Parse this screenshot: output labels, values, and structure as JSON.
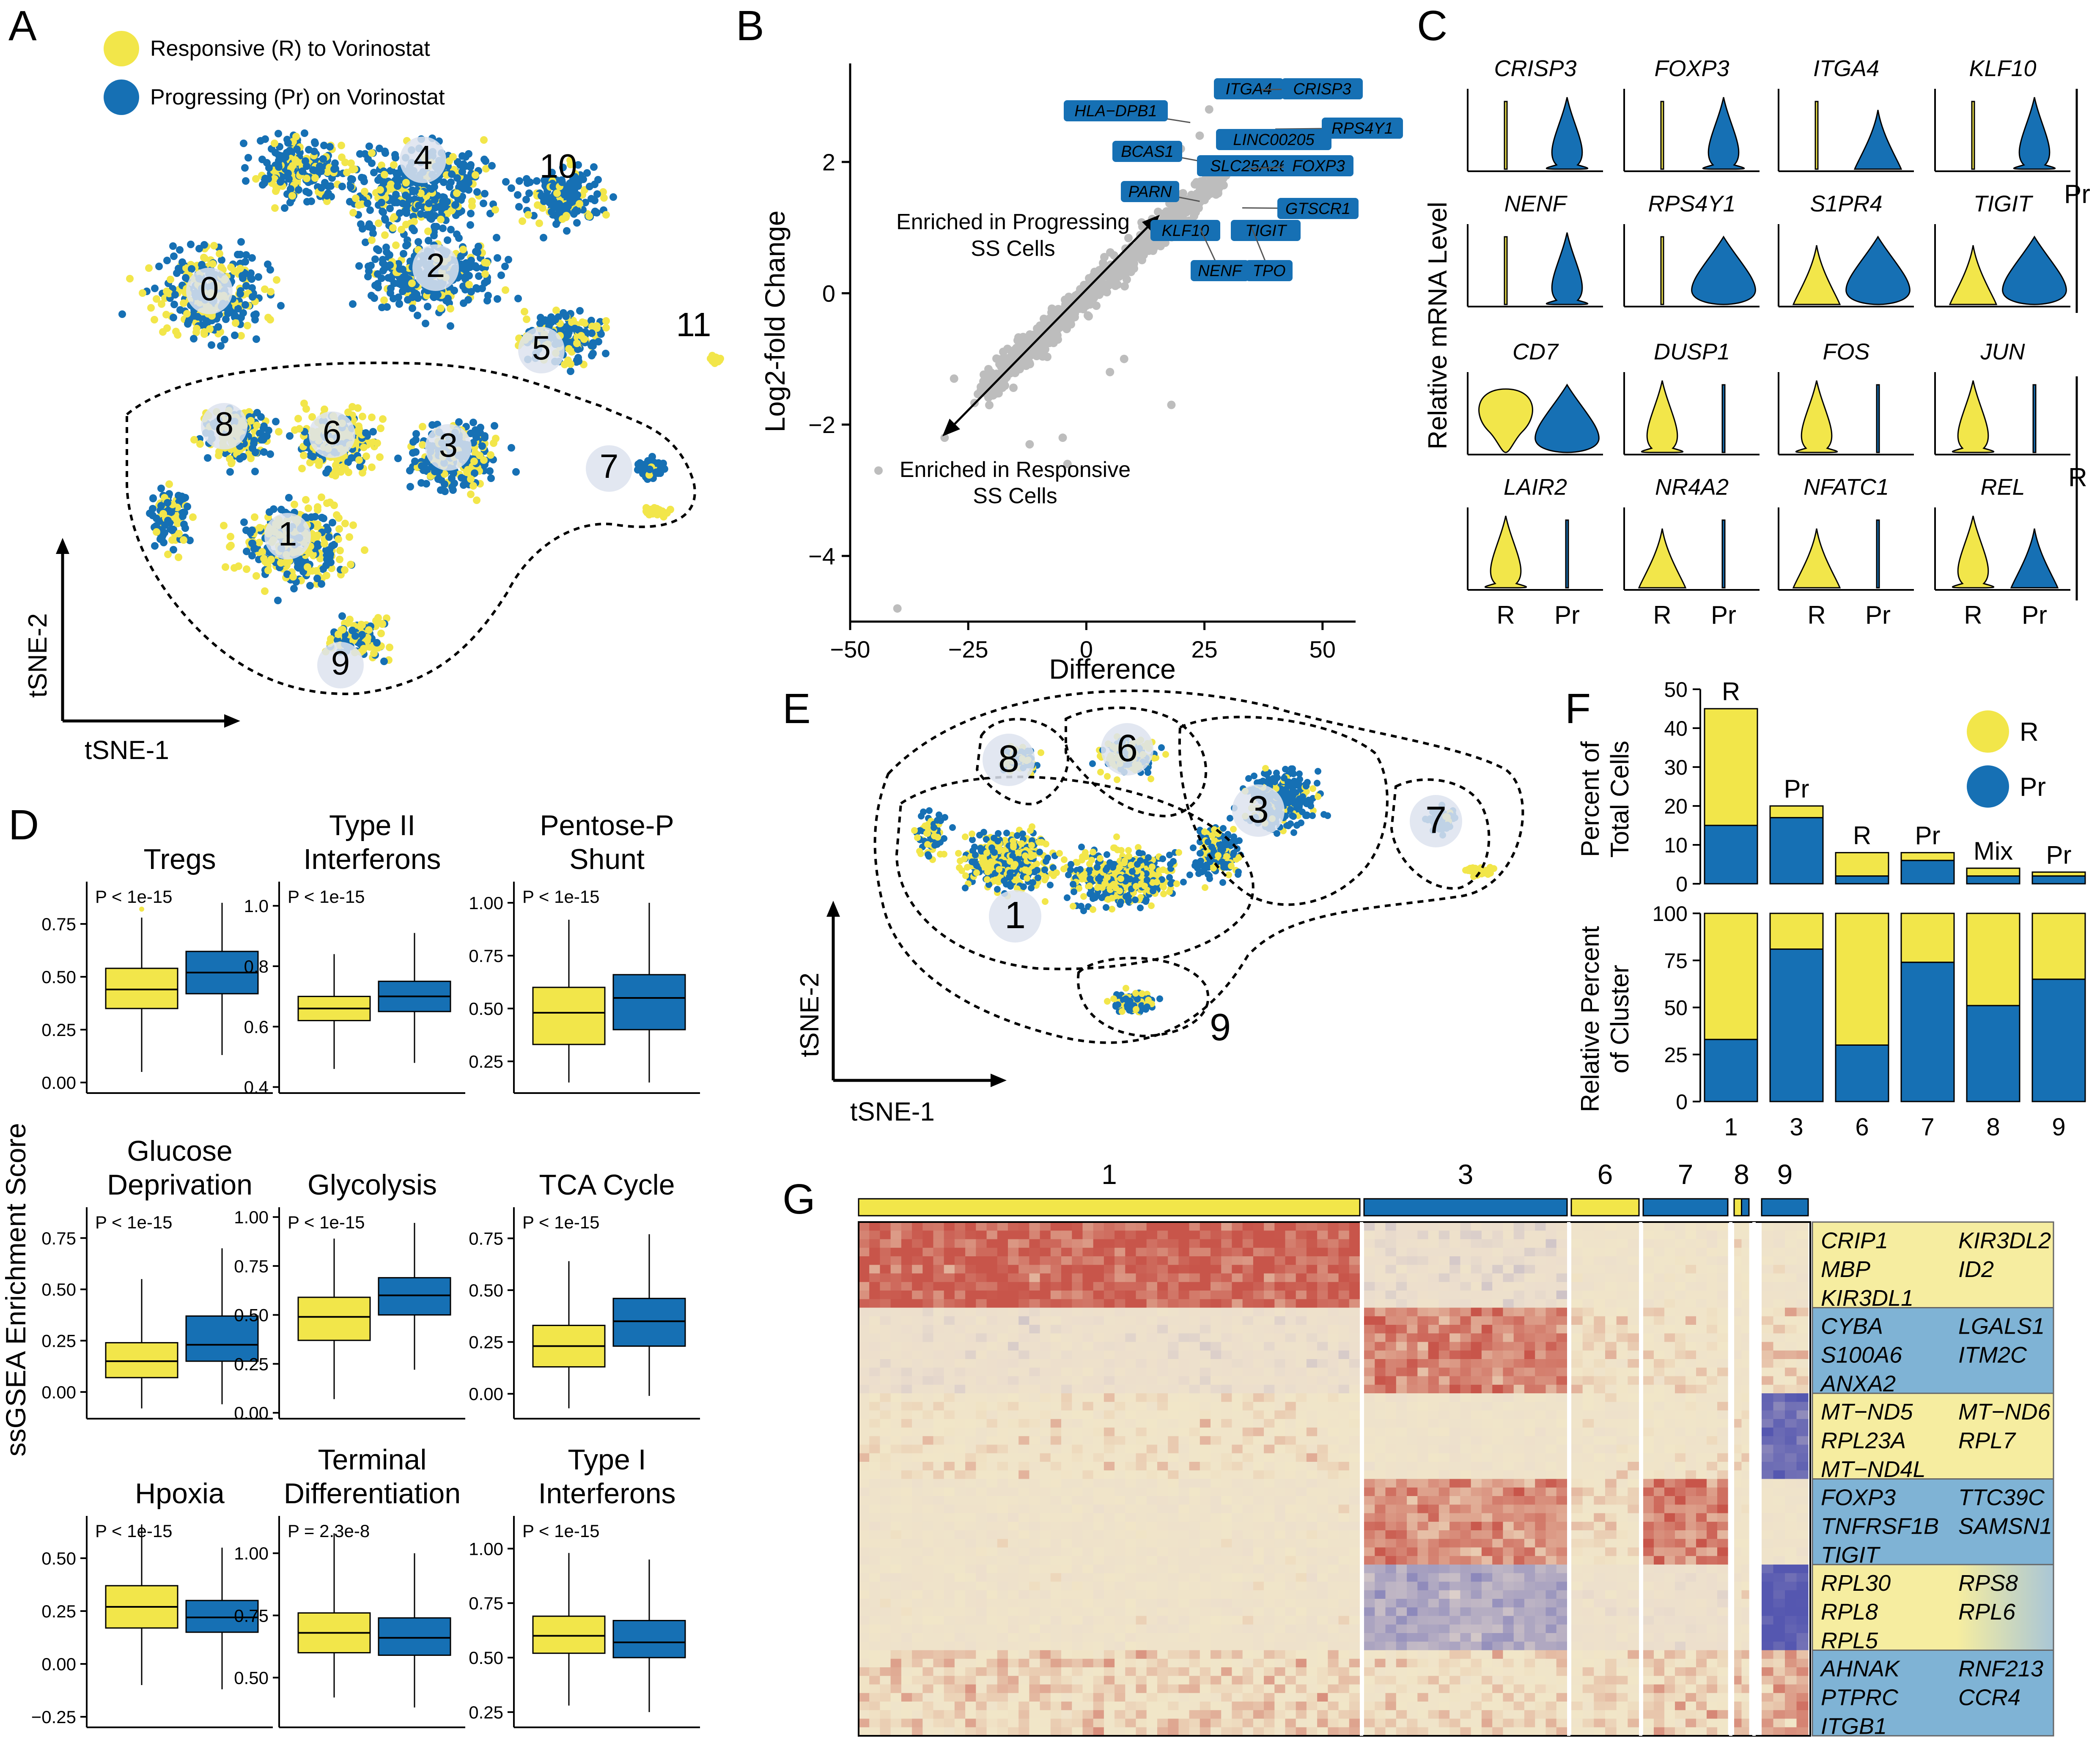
{
  "colors": {
    "responsive": "#f2e64a",
    "progressing": "#1670b4",
    "grey": "#bdbdbd",
    "heatRed": "#c8554a",
    "heatBlue": "#5557b0",
    "heatCream": "#f1e6c8"
  },
  "panelA": {
    "letter": "A",
    "legend": [
      "Responsive (R) to Vorinostat",
      "Progressing (Pr) on Vorinostat"
    ],
    "clusters": [
      "0",
      "1",
      "2",
      "3",
      "4",
      "5",
      "6",
      "7",
      "8",
      "9",
      "10",
      "11"
    ],
    "xaxis": "tSNE-1",
    "yaxis": "tSNE-2"
  },
  "panelB": {
    "letter": "B",
    "xlabel": "Difference",
    "ylabel": "Log2-fold Change",
    "xticks": [
      "−50",
      "−25",
      "0",
      "25",
      "50"
    ],
    "yticks": [
      "2",
      "0",
      "−2",
      "−4"
    ],
    "annotProg": [
      "Enriched in Progressing",
      "SS Cells"
    ],
    "annotResp": [
      "Enriched in Responsive",
      "SS Cells"
    ],
    "genes": [
      "ITGA4",
      "CRISP3",
      "HLA−DPB1",
      "RPS4Y1",
      "LINC00205",
      "BCAS1",
      "SLC25A26",
      "FOXP3",
      "PARN",
      "GTSCR1",
      "KLF10",
      "TIGIT",
      "NENF",
      "TPO"
    ]
  },
  "panelC": {
    "letter": "C",
    "ylabel": "Relative mRNA Level",
    "prGenes": [
      "CRISP3",
      "FOXP3",
      "ITGA4",
      "KLF10",
      "NENF",
      "RPS4Y1",
      "S1PR4",
      "TIGIT"
    ],
    "rGenes": [
      "CD7",
      "DUSP1",
      "FOS",
      "JUN",
      "LAIR2",
      "NR4A2",
      "NFATC1",
      "REL"
    ],
    "groupPr": "Pr",
    "groupR": "R",
    "xlabels": [
      "R",
      "Pr"
    ]
  },
  "panelD": {
    "letter": "D",
    "ylabel": "ssGSEA Enrichment Score",
    "xlabels": [
      "R",
      "Pr"
    ],
    "plots": [
      {
        "title": [
          "Tregs"
        ],
        "p": "P < 1e-15",
        "ticks": [
          "0.75",
          "0.50",
          "0.25",
          "0.00"
        ]
      },
      {
        "title": [
          "Type II",
          "Interferons"
        ],
        "p": "P < 1e-15",
        "ticks": [
          "1.0",
          "0.8",
          "0.6",
          "0.4"
        ]
      },
      {
        "title": [
          "Pentose-P",
          "Shunt"
        ],
        "p": "P < 1e-15",
        "ticks": [
          "1.00",
          "0.75",
          "0.50",
          "0.25"
        ]
      },
      {
        "title": [
          "Glucose",
          "Deprivation"
        ],
        "p": "P < 1e-15",
        "ticks": [
          "0.75",
          "0.50",
          "0.25",
          "0.00"
        ]
      },
      {
        "title": [
          "Glycolysis"
        ],
        "p": "P < 1e-15",
        "ticks": [
          "1.00",
          "0.75",
          "0.50",
          "0.25",
          "0.00"
        ]
      },
      {
        "title": [
          "TCA Cycle"
        ],
        "p": "P < 1e-15",
        "ticks": [
          "0.75",
          "0.50",
          "0.25",
          "0.00"
        ]
      },
      {
        "title": [
          "Hpoxia"
        ],
        "p": "P < 1e-15",
        "ticks": [
          "0.50",
          "0.25",
          "0.00",
          "−0.25"
        ]
      },
      {
        "title": [
          "Terminal",
          "Differentiation"
        ],
        "p": "P = 2.3e-8",
        "ticks": [
          "1.00",
          "0.75",
          "0.50"
        ]
      },
      {
        "title": [
          "Type I",
          "Interferons"
        ],
        "p": "P < 1e-15",
        "ticks": [
          "1.00",
          "0.75",
          "0.50",
          "0.25"
        ]
      }
    ]
  },
  "panelE": {
    "letter": "E",
    "clusters": [
      "1",
      "3",
      "6",
      "7",
      "8",
      "9"
    ],
    "xaxis": "tSNE-1",
    "yaxis": "tSNE-2"
  },
  "panelF": {
    "letter": "F",
    "ylabelTop": [
      "Percent of",
      "Total Cells"
    ],
    "ylabelBottom": [
      "Relative Percent",
      "of Cluster"
    ],
    "topTicks": [
      "50",
      "40",
      "30",
      "20",
      "10",
      "0"
    ],
    "bottomTicks": [
      "100",
      "75",
      "50",
      "25",
      "0"
    ],
    "legend": [
      "R",
      "Pr"
    ],
    "clusters": [
      "1",
      "3",
      "6",
      "7",
      "8",
      "9"
    ],
    "barLabels": [
      "R",
      "Pr",
      "R",
      "Pr",
      "Mix",
      "Pr"
    ]
  },
  "panelG": {
    "letter": "G",
    "clusters": [
      "1",
      "3",
      "6",
      "7",
      "8",
      "9"
    ],
    "geneBlocks": [
      {
        "left": [
          "CRIP1",
          "MBP",
          "KIR3DL1"
        ],
        "right": [
          "KIR3DL2",
          "ID2"
        ]
      },
      {
        "left": [
          "CYBA",
          "S100A6",
          "ANXA2"
        ],
        "right": [
          "LGALS1",
          "ITM2C"
        ]
      },
      {
        "left": [
          "MT−ND5",
          "RPL23A",
          "MT−ND4L"
        ],
        "right": [
          "MT−ND6",
          "RPL7"
        ]
      },
      {
        "left": [
          "FOXP3",
          "TNFRSF1B",
          "TIGIT"
        ],
        "right": [
          "TTC39C",
          "SAMSN1"
        ]
      },
      {
        "left": [
          "RPL30",
          "RPL8",
          "RPL5"
        ],
        "right": [
          "RPS8",
          "RPL6"
        ]
      },
      {
        "left": [
          "AHNAK",
          "PTPRC",
          "ITGB1"
        ],
        "right": [
          "RNF213",
          "CCR4"
        ]
      }
    ]
  },
  "chart_data": [
    {
      "panel": "B",
      "type": "scatter",
      "xlabel": "Difference",
      "ylabel": "Log2-fold Change",
      "xlim": [
        -50,
        57
      ],
      "ylim": [
        -5,
        3.5
      ],
      "labeled_points": [
        {
          "label": "ITGA4",
          "x": 36,
          "y": 3.1
        },
        {
          "label": "CRISP3",
          "x": 37,
          "y": 3.1
        },
        {
          "label": "HLA−DPB1",
          "x": 22,
          "y": 2.6
        },
        {
          "label": "RPS4Y1",
          "x": 40,
          "y": 2.5
        },
        {
          "label": "LINC00205",
          "x": 31,
          "y": 2.3
        },
        {
          "label": "BCAS1",
          "x": 25,
          "y": 2.0
        },
        {
          "label": "SLC25A26",
          "x": 33,
          "y": 2.0
        },
        {
          "label": "FOXP3",
          "x": 34,
          "y": 1.9
        },
        {
          "label": "PARN",
          "x": 24,
          "y": 1.4
        },
        {
          "label": "GTSCR1",
          "x": 33,
          "y": 1.3
        },
        {
          "label": "KLF10",
          "x": 28,
          "y": 1.1
        },
        {
          "label": "TIGIT",
          "x": 32,
          "y": 1.05
        },
        {
          "label": "NENF",
          "x": 24,
          "y": 1.0
        },
        {
          "label": "TPO",
          "x": 35,
          "y": 1.0
        }
      ]
    },
    {
      "panel": "F-top",
      "type": "bar",
      "ylabel": "Percent of Total Cells",
      "categories": [
        "1",
        "3",
        "6",
        "7",
        "8",
        "9"
      ],
      "ylim": [
        0,
        50
      ],
      "series": [
        {
          "name": "R",
          "values": [
            30,
            3,
            6,
            2,
            2,
            1
          ]
        },
        {
          "name": "Pr",
          "values": [
            15,
            17,
            2,
            6,
            2,
            2
          ]
        }
      ]
    },
    {
      "panel": "F-bottom",
      "type": "bar",
      "ylabel": "Relative Percent of Cluster",
      "categories": [
        "1",
        "3",
        "6",
        "7",
        "8",
        "9"
      ],
      "ylim": [
        0,
        100
      ],
      "series": [
        {
          "name": "R",
          "values": [
            67,
            19,
            70,
            26,
            49,
            35
          ]
        },
        {
          "name": "Pr",
          "values": [
            33,
            81,
            30,
            74,
            51,
            65
          ]
        }
      ]
    },
    {
      "panel": "D",
      "type": "box",
      "plots": [
        {
          "R": [
            0.05,
            0.35,
            0.44,
            0.54,
            0.78
          ],
          "Pr": [
            0.13,
            0.42,
            0.52,
            0.62,
            0.85
          ],
          "ylim": [
            -0.05,
            0.95
          ]
        },
        {
          "R": [
            0.46,
            0.62,
            0.66,
            0.7,
            0.84
          ],
          "Pr": [
            0.48,
            0.65,
            0.7,
            0.75,
            0.91
          ],
          "ylim": [
            0.38,
            1.08
          ]
        },
        {
          "R": [
            0.15,
            0.33,
            0.48,
            0.6,
            0.92
          ],
          "Pr": [
            0.15,
            0.4,
            0.55,
            0.66,
            1.0
          ],
          "ylim": [
            0.1,
            1.1
          ]
        },
        {
          "R": [
            -0.08,
            0.07,
            0.15,
            0.24,
            0.55
          ],
          "Pr": [
            -0.06,
            0.15,
            0.23,
            0.37,
            0.7
          ],
          "ylim": [
            -0.13,
            0.9
          ]
        },
        {
          "R": [
            0.07,
            0.37,
            0.49,
            0.59,
            0.89
          ],
          "Pr": [
            0.22,
            0.5,
            0.6,
            0.69,
            0.97
          ],
          "ylim": [
            -0.03,
            1.05
          ]
        },
        {
          "R": [
            -0.07,
            0.13,
            0.23,
            0.33,
            0.64
          ],
          "Pr": [
            -0.01,
            0.23,
            0.35,
            0.46,
            0.77
          ],
          "ylim": [
            -0.12,
            0.9
          ]
        },
        {
          "R": [
            -0.1,
            0.17,
            0.27,
            0.37,
            0.66
          ],
          "Pr": [
            -0.12,
            0.15,
            0.22,
            0.3,
            0.55
          ],
          "ylim": [
            -0.3,
            0.7
          ]
        },
        {
          "R": [
            0.42,
            0.6,
            0.68,
            0.76,
            1.08
          ],
          "Pr": [
            0.38,
            0.59,
            0.66,
            0.74,
            1.0
          ],
          "ylim": [
            0.3,
            1.15
          ]
        },
        {
          "R": [
            0.28,
            0.52,
            0.6,
            0.69,
            0.98
          ],
          "Pr": [
            0.25,
            0.5,
            0.57,
            0.67,
            0.95
          ],
          "ylim": [
            0.18,
            1.15
          ]
        }
      ]
    }
  ]
}
